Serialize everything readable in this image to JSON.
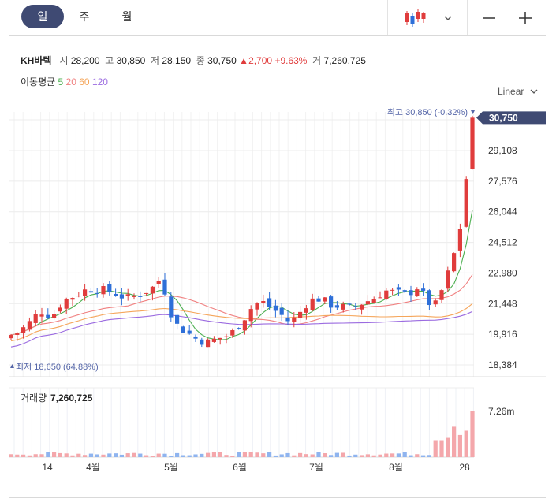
{
  "tabs": [
    {
      "label": "일"
    },
    {
      "label": "주"
    },
    {
      "label": "월"
    }
  ],
  "header": {
    "name": "KH바텍",
    "open_label": "시",
    "open": "28,200",
    "high_label": "고",
    "high": "30,850",
    "low_label": "저",
    "low": "28,150",
    "close_label": "종",
    "close": "30,750",
    "change": "2,700",
    "change_pct": "+9.63%",
    "volume_label": "거",
    "volume": "7,260,725"
  },
  "ma": {
    "label": "이동평균",
    "p5": "5",
    "p20": "20",
    "p60": "60",
    "p120": "120"
  },
  "scale_label": "Linear",
  "chart_data": {
    "type": "candlestick",
    "y_ticks": [
      29108,
      27576,
      26044,
      24512,
      22980,
      21448,
      19916,
      18384
    ],
    "y_tick_labels": [
      "29,108",
      "27,576",
      "26,044",
      "24,512",
      "22,980",
      "21,448",
      "19,916",
      "18,384"
    ],
    "current_price_label": "30,750",
    "current_price": 30750,
    "max_annotation": "최고 30,850 (-0.32%)",
    "min_annotation": "최저 18,650 (64.88%)",
    "x_labels": [
      "14",
      "4월",
      "5월",
      "6월",
      "7월",
      "8월",
      "28"
    ],
    "volume_title": "거래량",
    "volume_value": "7,260,725",
    "volume_axis_label": "7.26m",
    "colors": {
      "up": "#e03c3c",
      "down": "#2e6fd8",
      "ma5": "#4caf50",
      "ma20": "#f08080",
      "ma60": "#f5a65b",
      "ma120": "#9b6be0",
      "accent": "#3f4a73"
    }
  }
}
